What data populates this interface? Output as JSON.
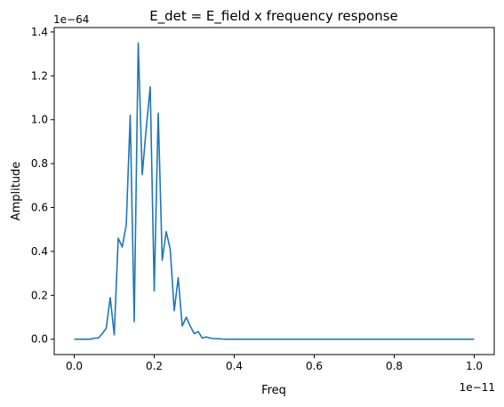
{
  "chart_data": {
    "type": "line",
    "title": "E_det = E_field x frequency response",
    "xlabel": "Freq",
    "ylabel": "Amplitude",
    "x_offset_label": "1e−11",
    "y_offset_label": "1e−64",
    "xlim": [
      -0.05,
      1.05
    ],
    "ylim": [
      -0.07,
      1.42
    ],
    "x_ticks": [
      0.0,
      0.2,
      0.4,
      0.6,
      0.8,
      1.0
    ],
    "x_tick_labels": [
      "0.0",
      "0.2",
      "0.4",
      "0.6",
      "0.8",
      "1.0"
    ],
    "y_ticks": [
      0.0,
      0.2,
      0.4,
      0.6,
      0.8,
      1.0,
      1.2,
      1.4
    ],
    "y_tick_labels": [
      "0.0",
      "0.2",
      "0.4",
      "0.6",
      "0.8",
      "1.0",
      "1.2",
      "1.4"
    ],
    "grid": false,
    "line_color": "#1f77b4",
    "series": [
      {
        "x": [
          0.0,
          0.02,
          0.04,
          0.05,
          0.06,
          0.07,
          0.08,
          0.09,
          0.1,
          0.11,
          0.12,
          0.13,
          0.14,
          0.15,
          0.16,
          0.17,
          0.18,
          0.19,
          0.2,
          0.21,
          0.22,
          0.23,
          0.24,
          0.25,
          0.26,
          0.27,
          0.28,
          0.29,
          0.3,
          0.31,
          0.32,
          0.33,
          0.34,
          0.35,
          0.36,
          0.37,
          0.38,
          0.4,
          0.5,
          0.6,
          0.7,
          0.8,
          0.9,
          1.0
        ],
        "y": [
          0.0,
          0.0,
          0.0,
          0.005,
          0.005,
          0.025,
          0.05,
          0.19,
          0.02,
          0.46,
          0.42,
          0.52,
          1.02,
          0.08,
          1.35,
          0.75,
          0.96,
          1.15,
          0.22,
          1.03,
          0.36,
          0.49,
          0.41,
          0.13,
          0.28,
          0.06,
          0.1,
          0.06,
          0.025,
          0.035,
          0.005,
          0.01,
          0.005,
          0.003,
          0.002,
          0.001,
          0.0,
          0.0,
          0.0,
          0.0,
          0.0,
          0.0,
          0.0,
          0.0
        ]
      }
    ]
  }
}
